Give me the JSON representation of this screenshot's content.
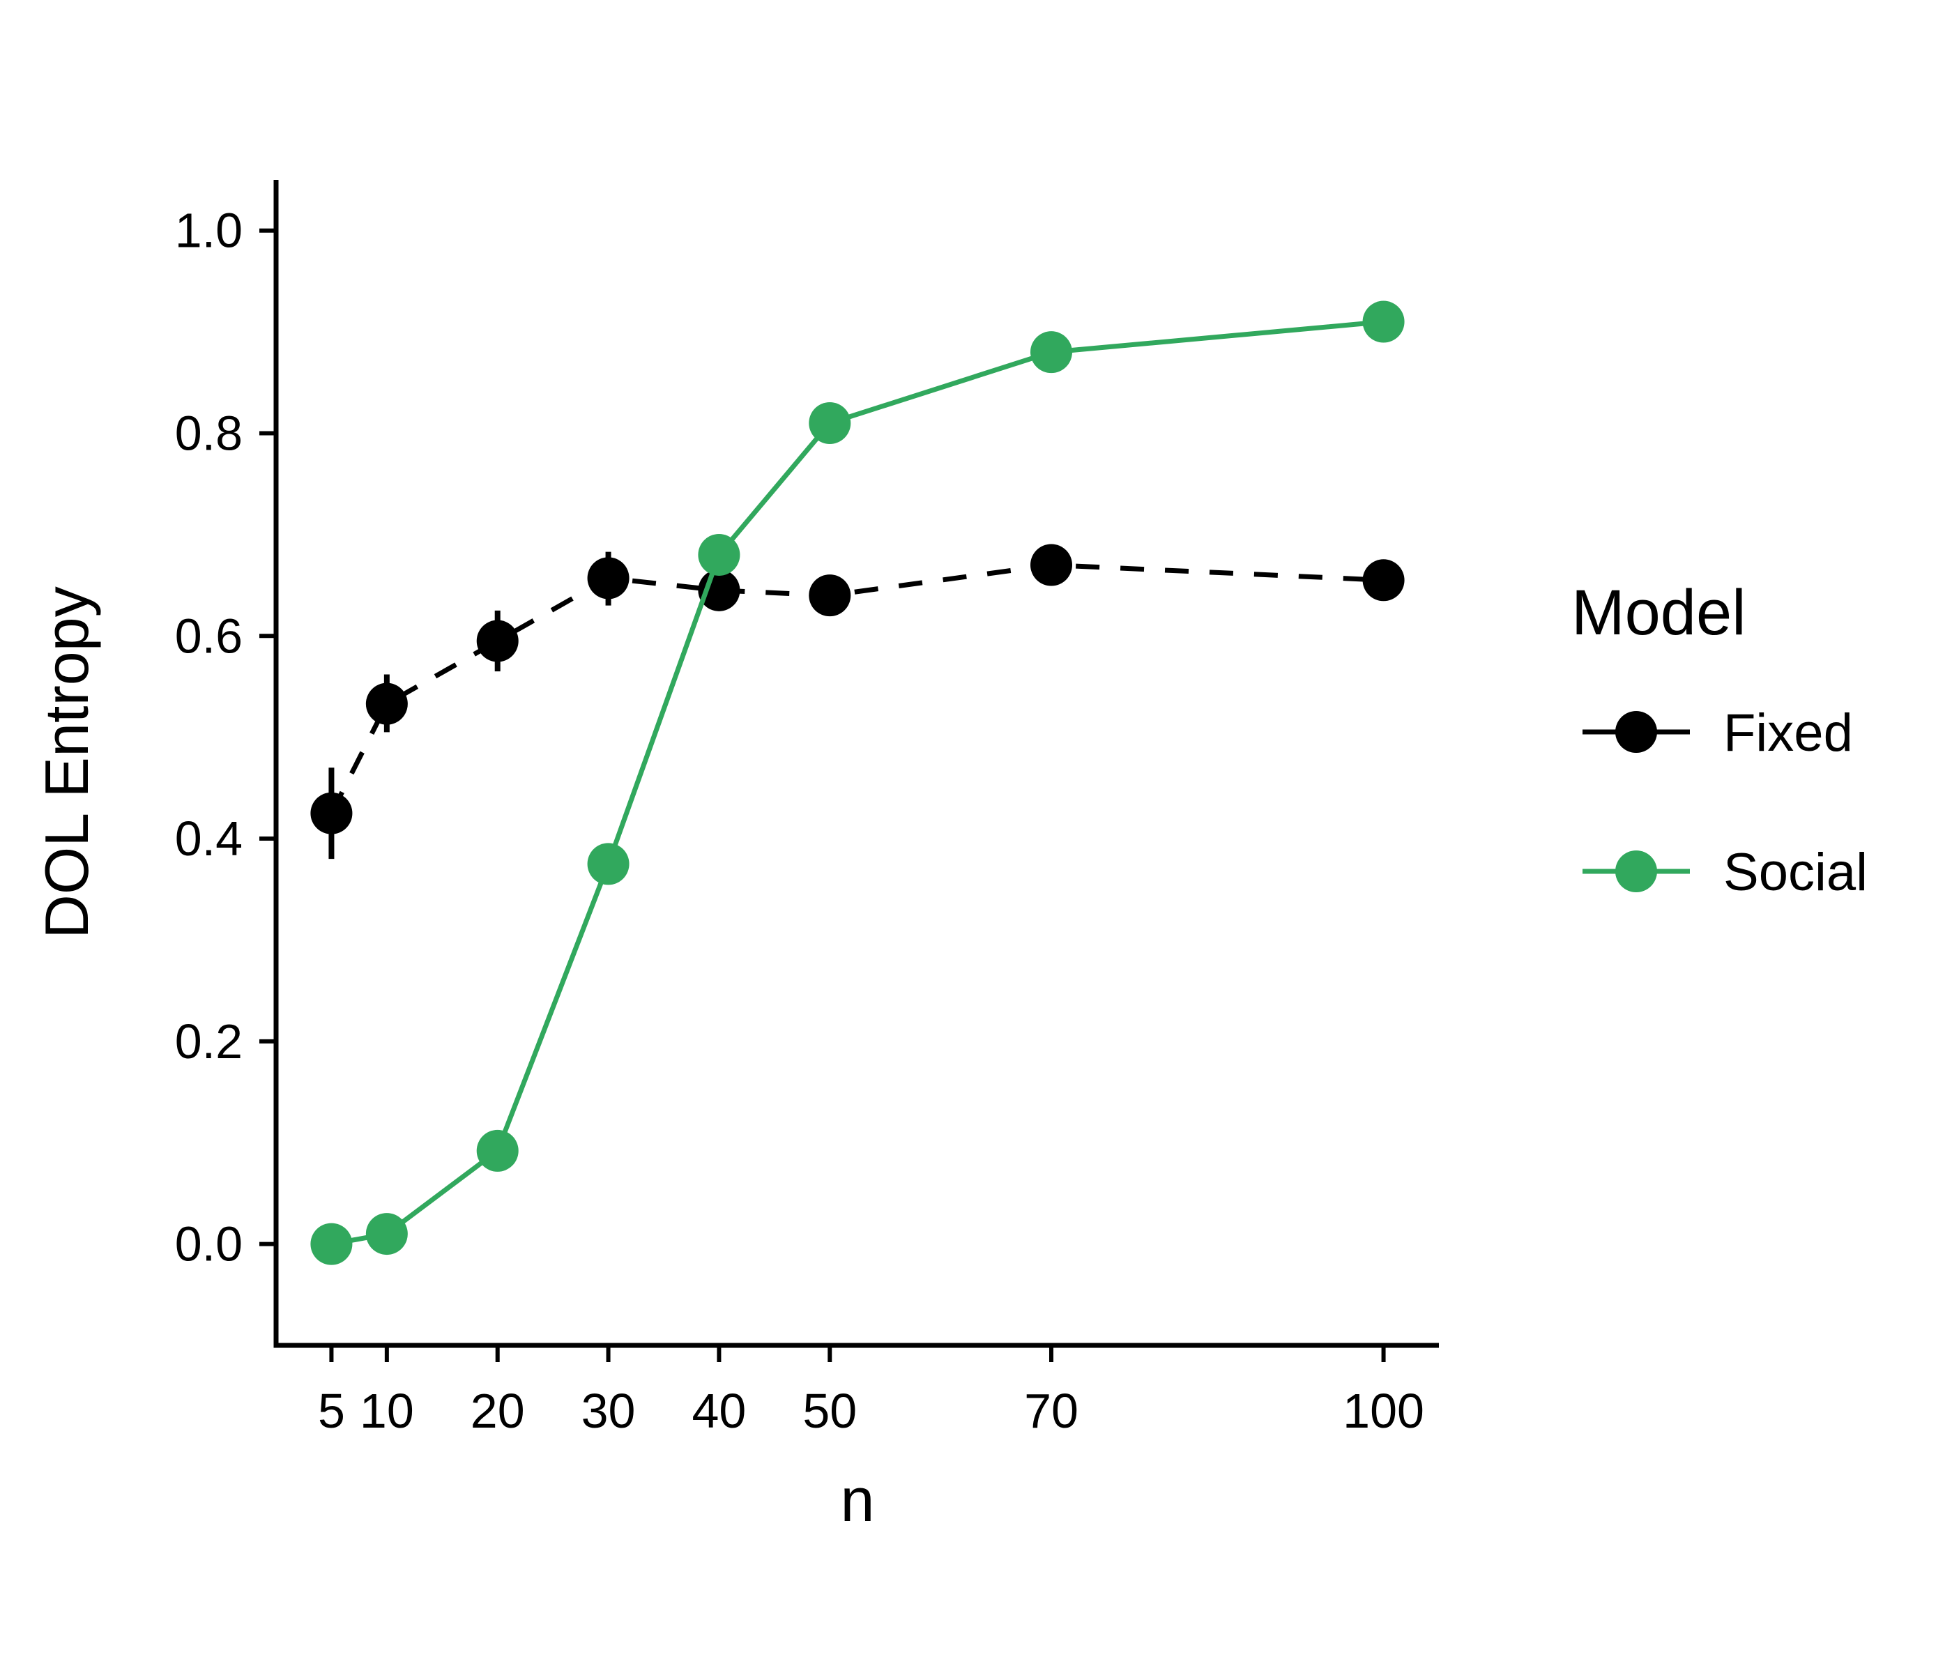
{
  "chart_data": {
    "type": "line",
    "title": "",
    "xlabel": "n",
    "ylabel": "DOL Entropy",
    "x": [
      5,
      10,
      20,
      30,
      40,
      50,
      70,
      100
    ],
    "x_tick_labels": [
      "5",
      "10",
      "20",
      "30",
      "40",
      "50",
      "70",
      "100"
    ],
    "xlim": [
      0,
      105
    ],
    "y_ticks": [
      0.0,
      0.2,
      0.4,
      0.6,
      0.8,
      1.0
    ],
    "y_tick_labels": [
      "0.0",
      "0.2",
      "0.4",
      "0.6",
      "0.8",
      "1.0"
    ],
    "ylim": [
      -0.1,
      1.05
    ],
    "grid": false,
    "legend": {
      "title": "Model",
      "position": "right"
    },
    "series": [
      {
        "name": "Fixed",
        "color": "#000000",
        "line_style": "dashed",
        "values": [
          0.425,
          0.533,
          0.595,
          0.657,
          0.645,
          0.64,
          0.67,
          0.655
        ],
        "error_low": [
          0.38,
          0.505,
          0.565,
          0.63,
          0.625,
          0.62,
          0.655,
          0.64
        ],
        "error_high": [
          0.47,
          0.562,
          0.625,
          0.683,
          0.665,
          0.66,
          0.685,
          0.67
        ]
      },
      {
        "name": "Social",
        "color": "#31a85d",
        "line_style": "solid",
        "values": [
          0.0,
          0.01,
          0.092,
          0.375,
          0.68,
          0.81,
          0.88,
          0.91
        ]
      }
    ]
  }
}
